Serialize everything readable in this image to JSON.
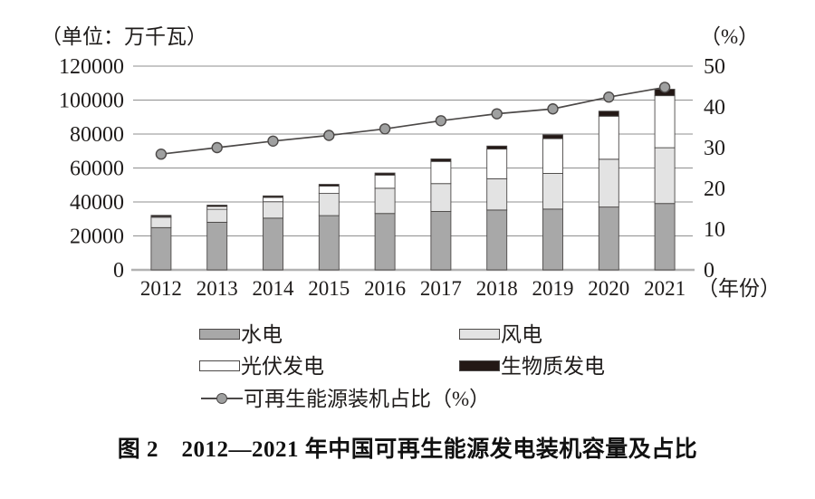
{
  "chart_data": {
    "type": "bar",
    "subtype": "stacked-bars-with-line-overlay",
    "title": "图 2　2012—2021 年中国可再生能源发电装机容量及占比",
    "unit_left": "（单位：万千瓦）",
    "unit_right": "（%）",
    "year_suffix": "（年份）",
    "categories": [
      "2012",
      "2013",
      "2014",
      "2015",
      "2016",
      "2017",
      "2018",
      "2019",
      "2020",
      "2021"
    ],
    "series": [
      {
        "name": "水电",
        "type": "bar",
        "color": "#a8a8a8",
        "values": [
          24890,
          28044,
          30486,
          31954,
          33211,
          34411,
          35259,
          35804,
          37016,
          39092
        ]
      },
      {
        "name": "风电",
        "type": "bar",
        "color": "#e3e3e3",
        "values": [
          6083,
          7652,
          9657,
          13075,
          14864,
          16400,
          18427,
          21005,
          28153,
          32848
        ]
      },
      {
        "name": "光伏发电",
        "type": "bar",
        "color": "#ffffff",
        "values": [
          341,
          1589,
          2486,
          4318,
          7742,
          13042,
          17463,
          20468,
          25343,
          30656
        ]
      },
      {
        "name": "生物质发电",
        "type": "bar",
        "color": "#231815",
        "values": [
          800,
          850,
          950,
          1031,
          1214,
          1488,
          1781,
          2254,
          2952,
          3798
        ]
      },
      {
        "name": "可再生能源装机占比（%）",
        "type": "line",
        "color": "#4c4948",
        "marker_fill": "#9fa0a0",
        "values": [
          28.4,
          30.0,
          31.6,
          33.0,
          34.6,
          36.6,
          38.3,
          39.5,
          42.4,
          44.8
        ]
      }
    ],
    "left_axis": {
      "min": 0,
      "max": 120000,
      "ticks": [
        0,
        20000,
        40000,
        60000,
        80000,
        100000,
        120000
      ]
    },
    "right_axis": {
      "min": 0,
      "max": 50,
      "ticks": [
        0,
        10,
        20,
        30,
        40,
        50
      ]
    },
    "grid": true,
    "legend_position": "bottom",
    "colors": {
      "grid": "#8f8f8f",
      "baseline": "#b2b2b2",
      "bar_stroke": "#4c4948",
      "text": "#1f1c1b"
    }
  }
}
